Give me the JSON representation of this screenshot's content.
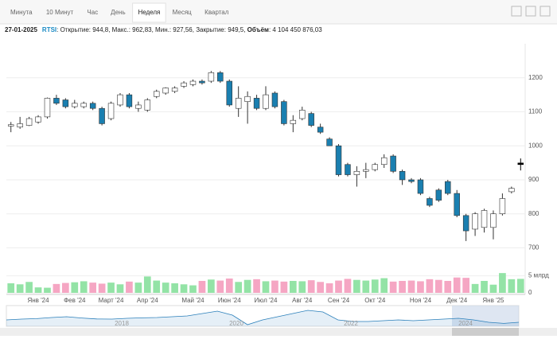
{
  "tabs": [
    "Минута",
    "10 Минут",
    "Час",
    "День",
    "Неделя",
    "Месяц",
    "Квартал"
  ],
  "selected_tab": 4,
  "info": {
    "date": "27-01-2025",
    "ticker": "RTSI",
    "text": ": Открытие: 944,8, Макс.: 962,83, Мин.: 927,56, Закрытие: 949,5, ",
    "volume_label": "Объём",
    "volume_text": ": 4 104 450 876,03"
  },
  "chart_data": {
    "type": "candlestick",
    "categories": [
      null,
      null,
      null,
      "Янв '24",
      null,
      null,
      null,
      "Фев '24",
      null,
      null,
      null,
      "Март '24",
      null,
      null,
      null,
      "Апр '24",
      null,
      null,
      null,
      null,
      "Май '24",
      null,
      null,
      null,
      "Июн '24",
      null,
      null,
      null,
      "Июл '24",
      null,
      null,
      null,
      "Авг '24",
      null,
      null,
      null,
      "Сен '24",
      null,
      null,
      null,
      "Окт '24",
      null,
      null,
      null,
      null,
      "Ноя '24",
      null,
      null,
      null,
      "Дек '24",
      null,
      null,
      null,
      "Янв '25",
      null,
      null,
      null
    ],
    "open": [
      1058,
      1055,
      1060,
      1070,
      1085,
      1140,
      1135,
      1115,
      1115,
      1125,
      1110,
      1080,
      1120,
      1150,
      1110,
      1105,
      1145,
      1155,
      1160,
      1175,
      1180,
      1190,
      1190,
      1215,
      1190,
      1110,
      1130,
      1140,
      1110,
      1155,
      1130,
      1065,
      1080,
      1095,
      1055,
      1020,
      1000,
      945,
      915,
      925,
      930,
      945,
      970,
      925,
      900,
      900,
      845,
      870,
      895,
      860,
      795,
      755,
      760,
      760,
      800,
      865,
      944.8
    ],
    "high": [
      1070,
      1085,
      1085,
      1090,
      1142,
      1150,
      1140,
      1135,
      1130,
      1130,
      1115,
      1130,
      1155,
      1155,
      1130,
      1140,
      1165,
      1172,
      1175,
      1190,
      1195,
      1195,
      1220,
      1220,
      1195,
      1175,
      1160,
      1150,
      1175,
      1160,
      1135,
      1090,
      1115,
      1100,
      1065,
      1025,
      1005,
      950,
      940,
      950,
      950,
      975,
      975,
      930,
      905,
      905,
      850,
      875,
      900,
      870,
      800,
      805,
      815,
      810,
      860,
      880,
      962.83
    ],
    "low": [
      1040,
      1050,
      1058,
      1065,
      1080,
      1120,
      1110,
      1110,
      1110,
      1105,
      1060,
      1075,
      1115,
      1110,
      1100,
      1100,
      1140,
      1150,
      1155,
      1170,
      1175,
      1180,
      1185,
      1185,
      1115,
      1085,
      1065,
      1105,
      1105,
      1110,
      1060,
      1040,
      1075,
      1055,
      1035,
      1000,
      910,
      910,
      880,
      905,
      925,
      935,
      920,
      885,
      890,
      855,
      820,
      835,
      855,
      790,
      720,
      735,
      745,
      725,
      795,
      860,
      927.56
    ],
    "close": [
      1062,
      1065,
      1080,
      1085,
      1140,
      1125,
      1115,
      1125,
      1125,
      1110,
      1065,
      1125,
      1150,
      1115,
      1120,
      1135,
      1160,
      1170,
      1170,
      1185,
      1190,
      1185,
      1215,
      1190,
      1120,
      1140,
      1145,
      1110,
      1150,
      1115,
      1065,
      1075,
      1105,
      1060,
      1040,
      1000,
      915,
      915,
      925,
      930,
      945,
      965,
      925,
      900,
      895,
      860,
      825,
      840,
      860,
      795,
      750,
      800,
      810,
      800,
      845,
      875,
      949.5
    ],
    "up_color": "#ffffff",
    "down_color": "#1a7fb0",
    "last_color": "#000000",
    "ylim": [
      680,
      1300
    ],
    "yticks": [
      700,
      800,
      900,
      1000,
      1100,
      1200
    ],
    "grid": true,
    "volume": {
      "values": [
        2.8,
        2.5,
        3.2,
        1.6,
        1.5,
        2.6,
        2.9,
        3.1,
        3.4,
        3.0,
        2.7,
        3.0,
        2.5,
        3.3,
        3.0,
        4.8,
        3.6,
        3.0,
        2.8,
        2.5,
        2.2,
        3.5,
        3.9,
        3.6,
        4.2,
        3.2,
        3.8,
        4.0,
        3.4,
        3.6,
        3.3,
        3.5,
        3.4,
        3.7,
        3.2,
        2.8,
        3.6,
        4.1,
        3.8,
        3.6,
        3.9,
        4.3,
        3.3,
        3.5,
        3.6,
        3.4,
        4.0,
        3.8,
        3.5,
        4.5,
        4.4,
        2.6,
        3.5,
        2.4,
        5.8,
        4.0,
        4.1
      ],
      "up_color": "#93e3a6",
      "down_color": "#f5a6c3",
      "ylim": [
        0,
        7
      ],
      "yticks": [
        {
          "value": 5,
          "label": "5 млрд"
        },
        0
      ]
    },
    "navigator": {
      "values": [
        1100,
        1150,
        1180,
        1250,
        1300,
        1220,
        1160,
        1150,
        1200,
        1230,
        1250,
        1300,
        1350,
        1500,
        1650,
        1400,
        800,
        1100,
        1300,
        1500,
        1700,
        1600,
        1100,
        1000,
        1000,
        1050,
        1100,
        1050,
        1100,
        1150,
        1200,
        1100,
        950,
        880,
        950
      ],
      "labels": [
        "2018",
        "2020",
        "2022",
        "2024"
      ],
      "color": "#2a7fba"
    }
  }
}
